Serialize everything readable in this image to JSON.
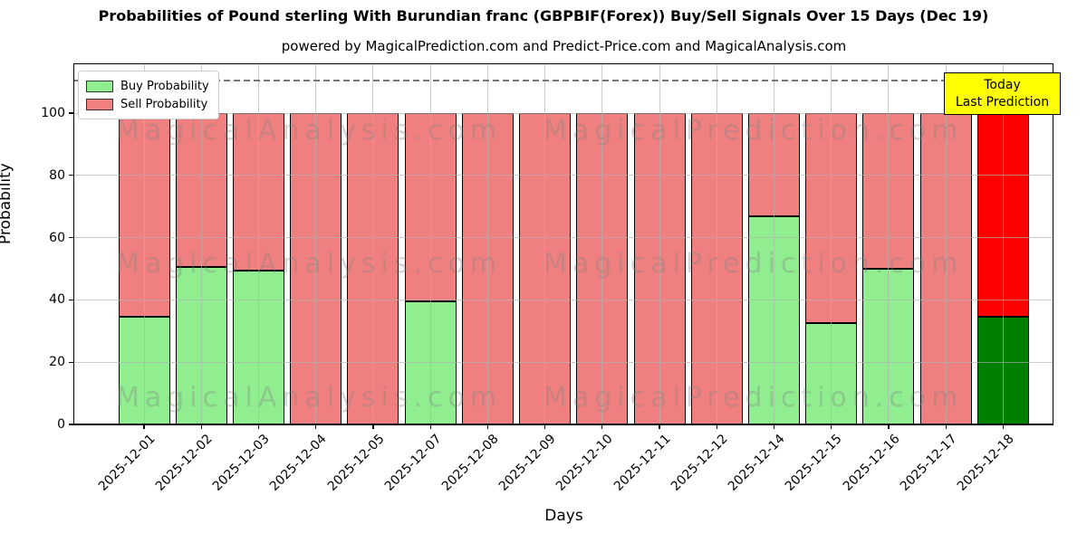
{
  "chart_data": {
    "type": "bar",
    "stacked": true,
    "title": "Probabilities of Pound sterling With Burundian franc (GBPBIF(Forex)) Buy/Sell Signals Over 15 Days (Dec 19)",
    "subtitle": "powered by MagicalPrediction.com and Predict-Price.com and MagicalAnalysis.com",
    "xlabel": "Days",
    "ylabel": "Probability",
    "categories": [
      "2025-12-01",
      "2025-12-02",
      "2025-12-03",
      "2025-12-04",
      "2025-12-05",
      "2025-12-07",
      "2025-12-08",
      "2025-12-09",
      "2025-12-10",
      "2025-12-11",
      "2025-12-12",
      "2025-12-14",
      "2025-12-15",
      "2025-12-16",
      "2025-12-17",
      "2025-12-18"
    ],
    "series": [
      {
        "name": "Buy Probability",
        "color": "#90ee90",
        "values": [
          34.5,
          50.5,
          49.5,
          0,
          0,
          39.5,
          0,
          0,
          0,
          0,
          0,
          67,
          32.5,
          50,
          0,
          34.5
        ]
      },
      {
        "name": "Sell Probability",
        "color": "#f08080",
        "values": [
          65.5,
          49.5,
          50.5,
          100,
          100,
          60.5,
          100,
          100,
          100,
          100,
          100,
          33,
          67.5,
          50,
          100,
          65.5
        ]
      }
    ],
    "today": {
      "index": 15,
      "buy_color": "#008000",
      "sell_color": "#ff0000"
    },
    "yticks": [
      0,
      20,
      40,
      60,
      80,
      100
    ],
    "ylim": [
      0,
      116
    ],
    "grid": true,
    "threshold_line_y": 110.5,
    "legend_position": "upper left"
  },
  "legend": {
    "items": [
      {
        "label": "Buy Probability",
        "color": "#90ee90"
      },
      {
        "label": "Sell Probability",
        "color": "#f08080"
      }
    ]
  },
  "annotation": {
    "lines": [
      "Today",
      "Last Prediction"
    ],
    "bg_color": "#ffff00"
  },
  "watermarks": {
    "left_text": "MagicalAnalysis.com",
    "right_text": "MagicalPrediction.com",
    "rows": 3
  }
}
